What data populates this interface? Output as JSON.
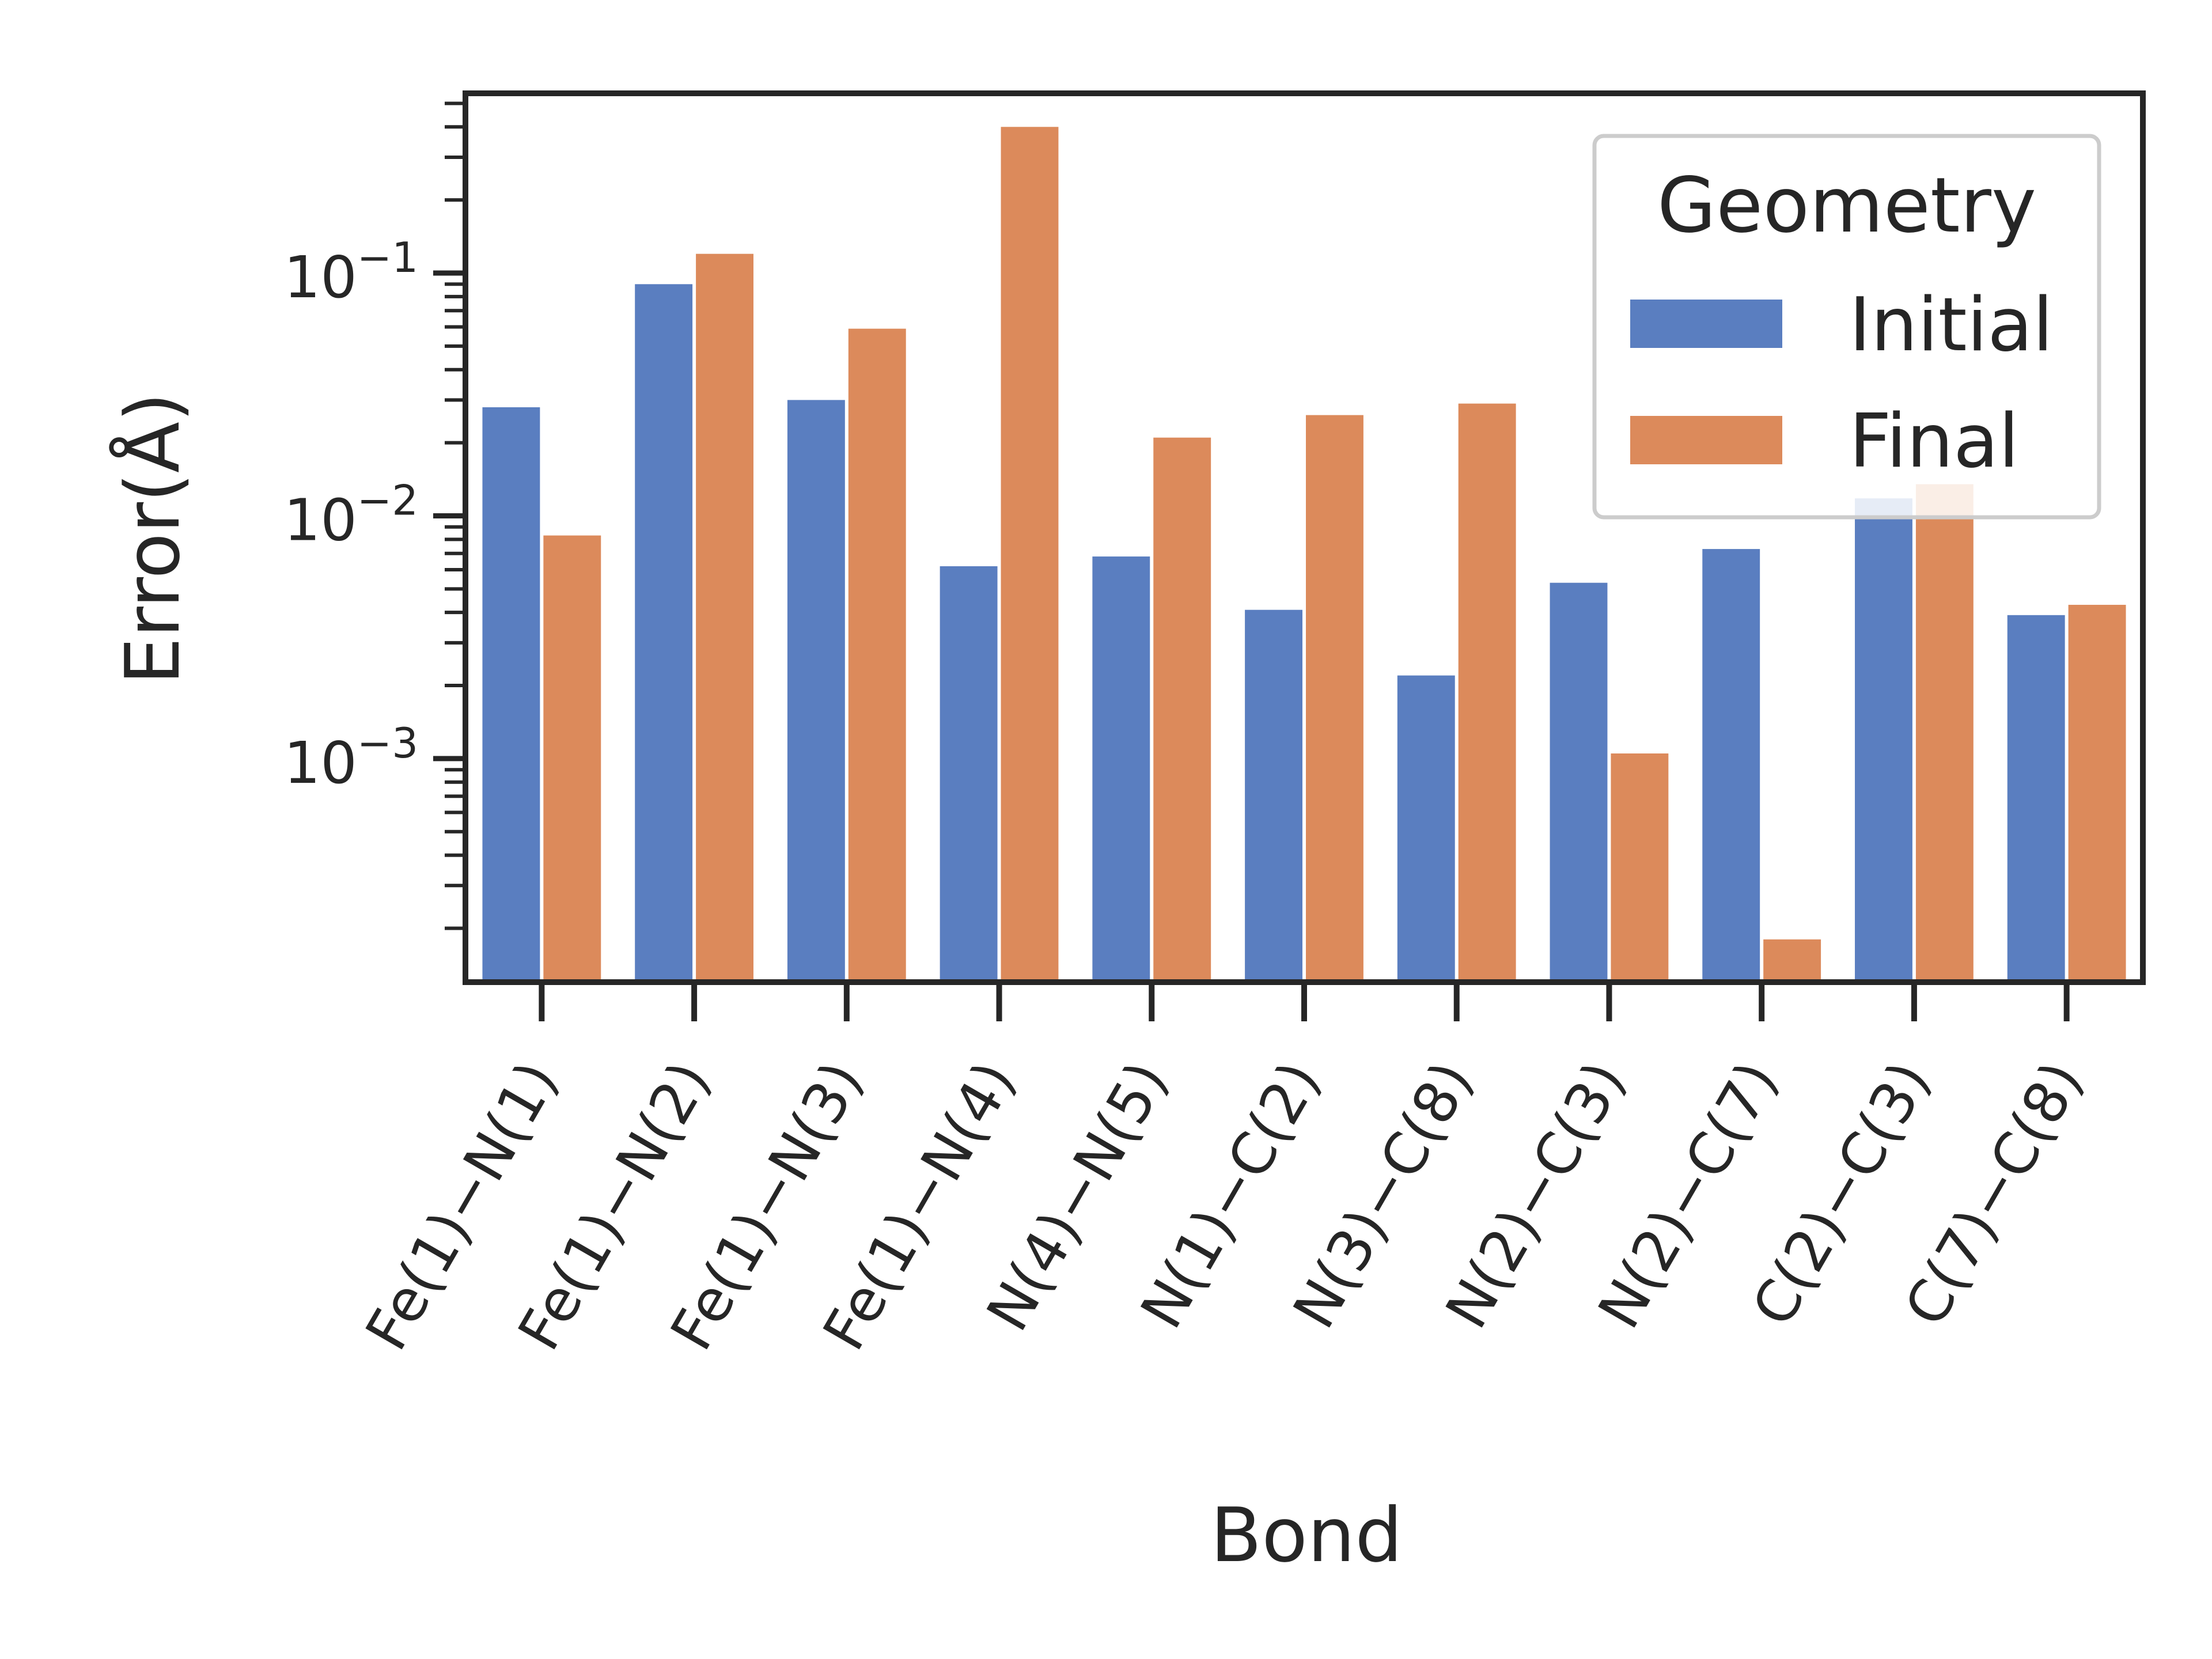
{
  "chart_data": {
    "type": "bar",
    "xlabel": "Bond",
    "ylabel": "Error(Å)",
    "yscale": "log",
    "ylim": [
      0.00012,
      0.55
    ],
    "y_major_ticks": [
      {
        "value": 0.001,
        "base": "10",
        "exp": "−3"
      },
      {
        "value": 0.01,
        "base": "10",
        "exp": "−2"
      },
      {
        "value": 0.1,
        "base": "10",
        "exp": "−1"
      }
    ],
    "categories": [
      "Fe(1)−N(1)",
      "Fe(1)−N(2)",
      "Fe(1)−N(3)",
      "Fe(1)−N(4)",
      "N(4)−N(5)",
      "N(1)−C(2)",
      "N(3)−C(8)",
      "N(2)−C(3)",
      "N(2)−C(7)",
      "C(2)−C(3)",
      "C(7)−C(8)"
    ],
    "series": [
      {
        "name": "Initial",
        "color": "#5a7ec0",
        "values": [
          0.028,
          0.09,
          0.03,
          0.0062,
          0.0068,
          0.0041,
          0.0022,
          0.0053,
          0.0073,
          0.0118,
          0.0039
        ]
      },
      {
        "name": "Final",
        "color": "#dc8a5b",
        "values": [
          0.0083,
          0.12,
          0.059,
          0.4,
          0.021,
          0.026,
          0.029,
          0.00105,
          0.00018,
          0.0135,
          0.0043
        ]
      }
    ],
    "legend": {
      "title": "Geometry",
      "position": "upper right"
    },
    "grid": false
  }
}
